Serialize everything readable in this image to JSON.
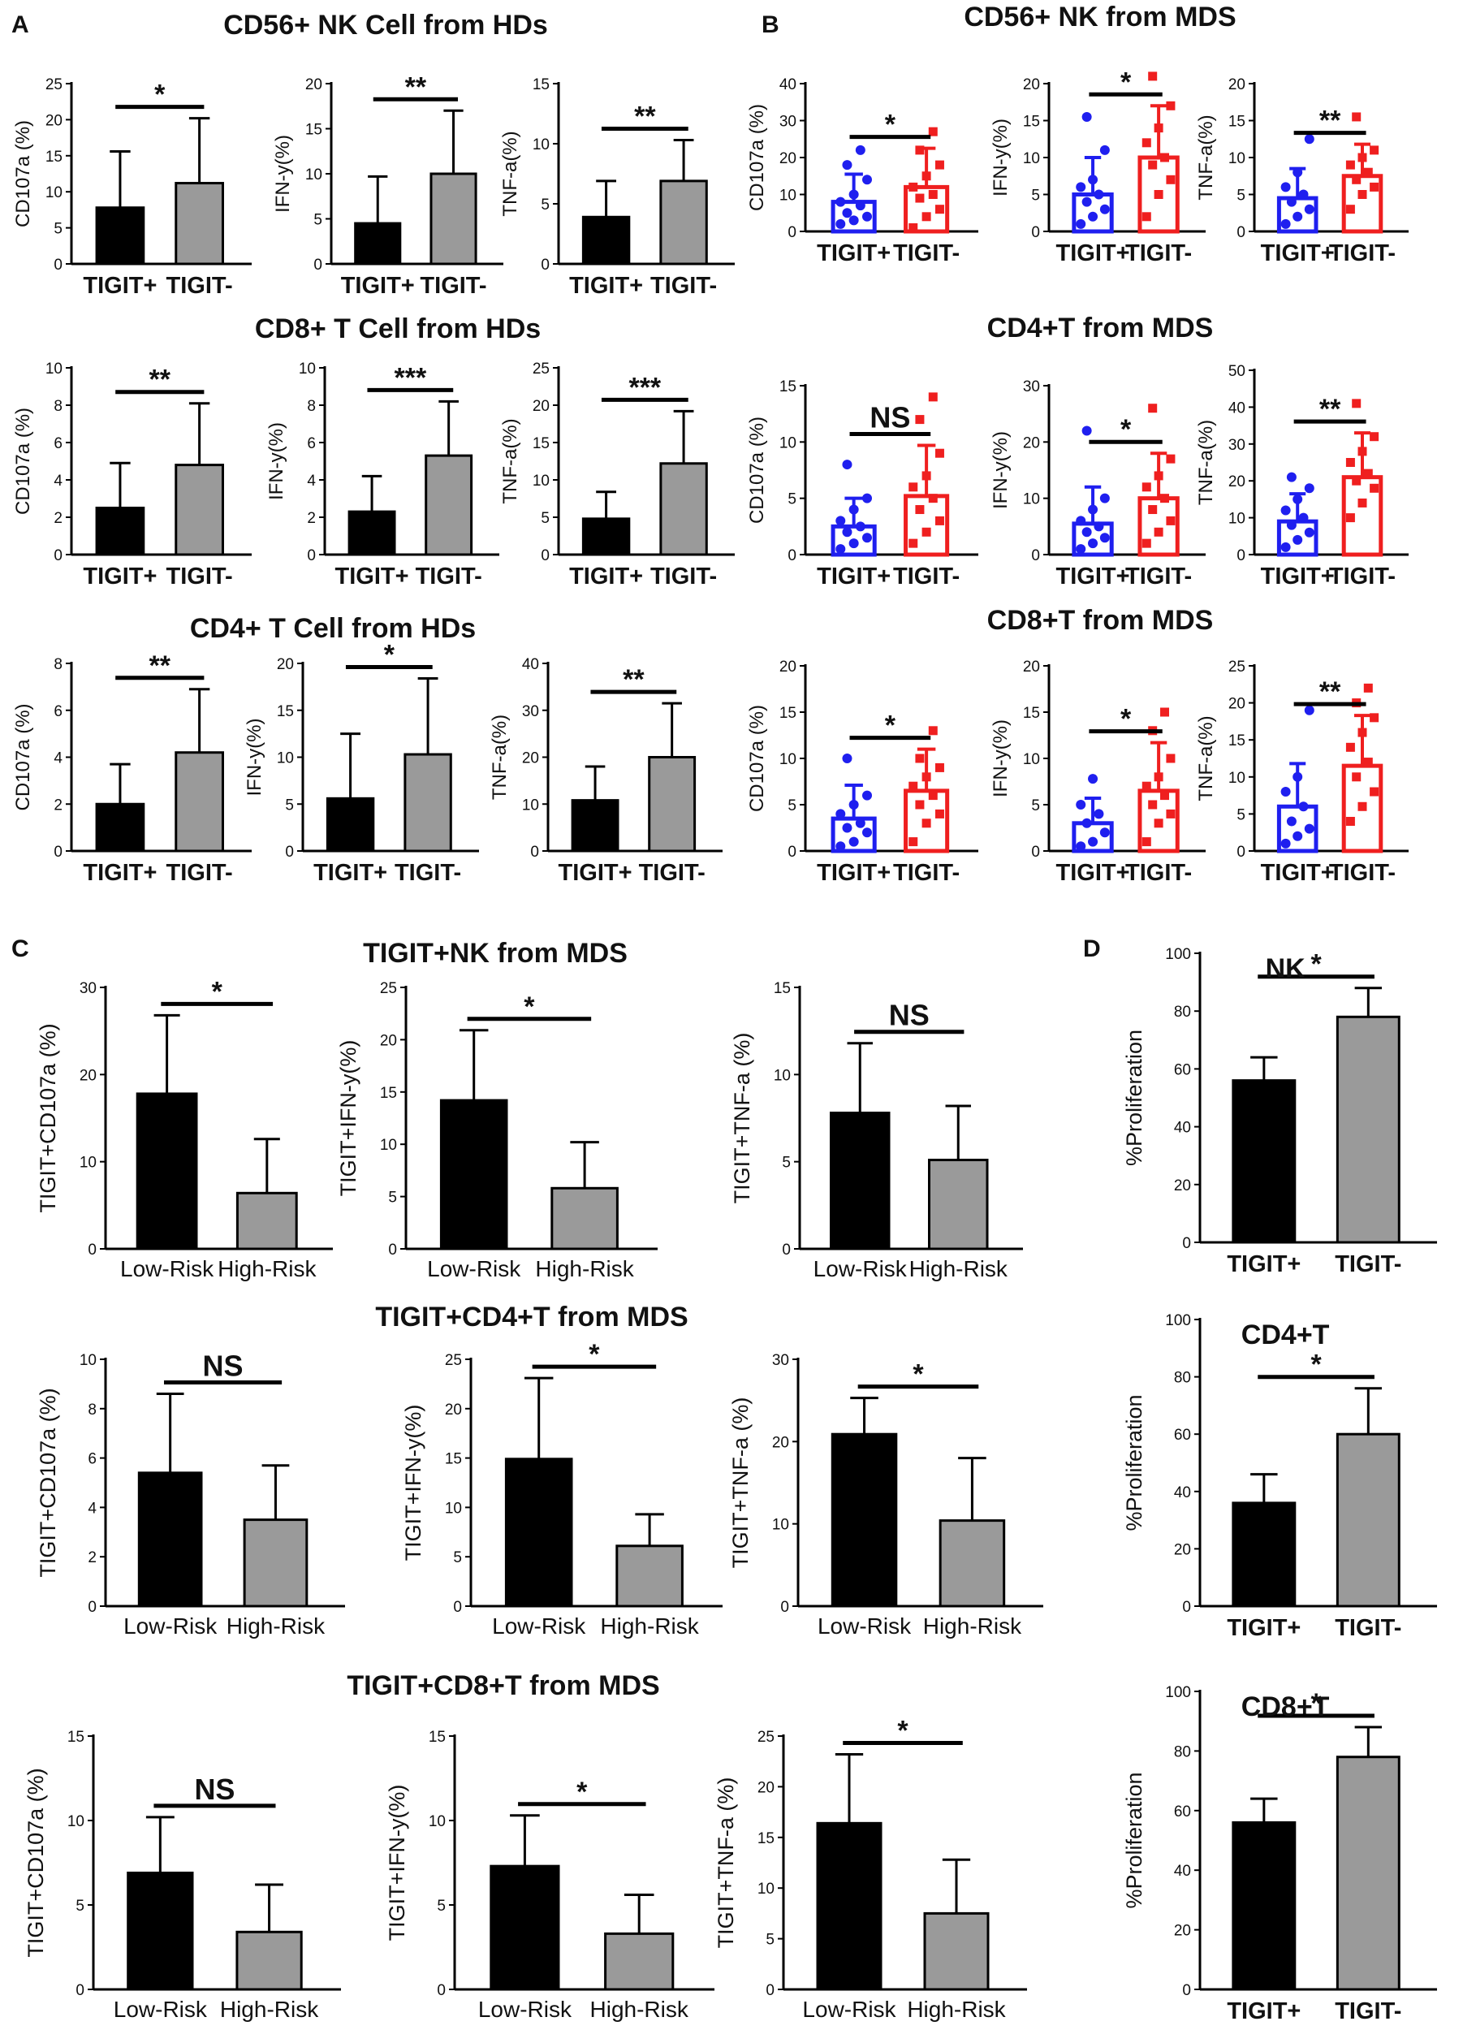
{
  "panel_labels": [
    "A",
    "B",
    "C",
    "D"
  ],
  "section_titles": {
    "a_row1": "CD56+ NK Cell from HDs",
    "a_row2": "CD8+ T Cell from HDs",
    "a_row3": "CD4+ T Cell from HDs",
    "b_row1": "CD56+ NK from MDS",
    "b_row2": "CD4+T from MDS",
    "b_row3": "CD8+T from MDS",
    "c_row1": "TIGIT+NK from MDS",
    "c_row2": "TIGIT+CD4+T from MDS",
    "c_row3": "TIGIT+CD8+T from MDS"
  },
  "colors": {
    "black_bar": "#000000",
    "gray_bar": "#9a9a9a",
    "blue": "#1f1fef",
    "red": "#ef1f1f"
  },
  "chart_data": [
    {
      "id": "A11",
      "type": "bar",
      "ylabel": "CD107a (%)",
      "ylim": [
        0,
        25
      ],
      "yticks": [
        0,
        5,
        10,
        15,
        20,
        25
      ],
      "categories": [
        "TIGIT+",
        "TIGIT-"
      ],
      "values": [
        7.8,
        11.2
      ],
      "errors": [
        7.8,
        9.0
      ],
      "significance": "*"
    },
    {
      "id": "A12",
      "type": "bar",
      "ylabel": "IFN-y(%)",
      "ylim": [
        0,
        20
      ],
      "yticks": [
        0,
        5,
        10,
        15,
        20
      ],
      "categories": [
        "TIGIT+",
        "TIGIT-"
      ],
      "values": [
        4.5,
        10.0
      ],
      "errors": [
        5.2,
        7.0
      ],
      "significance": "**"
    },
    {
      "id": "A13",
      "type": "bar",
      "ylabel": "TNF-a(%)",
      "ylim": [
        0,
        15
      ],
      "yticks": [
        0,
        5,
        10,
        15
      ],
      "categories": [
        "TIGIT+",
        "TIGIT-"
      ],
      "values": [
        3.9,
        6.9
      ],
      "errors": [
        3.0,
        3.4
      ],
      "significance": "**"
    },
    {
      "id": "A21",
      "type": "bar",
      "ylabel": "CD107a (%)",
      "ylim": [
        0,
        10
      ],
      "yticks": [
        0,
        2,
        4,
        6,
        8,
        10
      ],
      "categories": [
        "TIGIT+",
        "TIGIT-"
      ],
      "values": [
        2.5,
        4.8
      ],
      "errors": [
        2.4,
        3.3
      ],
      "significance": "**"
    },
    {
      "id": "A22",
      "type": "bar",
      "ylabel": "IFN-y(%)",
      "ylim": [
        0,
        10
      ],
      "yticks": [
        0,
        2,
        4,
        6,
        8,
        10
      ],
      "categories": [
        "TIGIT+",
        "TIGIT-"
      ],
      "values": [
        2.3,
        5.3
      ],
      "errors": [
        1.9,
        2.9
      ],
      "significance": "***"
    },
    {
      "id": "A23",
      "type": "bar",
      "ylabel": "TNF-a(%)",
      "ylim": [
        0,
        25
      ],
      "yticks": [
        0,
        5,
        10,
        15,
        20,
        25
      ],
      "categories": [
        "TIGIT+",
        "TIGIT-"
      ],
      "values": [
        4.8,
        12.2
      ],
      "errors": [
        3.6,
        7.0
      ],
      "significance": "***"
    },
    {
      "id": "A31",
      "type": "bar",
      "ylabel": "CD107a (%)",
      "ylim": [
        0,
        8
      ],
      "yticks": [
        0,
        2,
        4,
        6,
        8
      ],
      "categories": [
        "TIGIT+",
        "TIGIT-"
      ],
      "values": [
        2.0,
        4.2
      ],
      "errors": [
        1.7,
        2.7
      ],
      "significance": "**"
    },
    {
      "id": "A32",
      "type": "bar",
      "ylabel": "IFN-y(%)",
      "ylim": [
        0,
        20
      ],
      "yticks": [
        0,
        5,
        10,
        15,
        20
      ],
      "categories": [
        "TIGIT+",
        "TIGIT-"
      ],
      "values": [
        5.6,
        10.3
      ],
      "errors": [
        6.9,
        8.1
      ],
      "significance": "*"
    },
    {
      "id": "A33",
      "type": "bar",
      "ylabel": "TNF-a(%)",
      "ylim": [
        0,
        40
      ],
      "yticks": [
        0,
        10,
        20,
        30,
        40
      ],
      "categories": [
        "TIGIT+",
        "TIGIT-"
      ],
      "values": [
        10.8,
        20.0
      ],
      "errors": [
        7.2,
        11.5
      ],
      "significance": "**"
    },
    {
      "id": "B11",
      "type": "scatter",
      "ylabel": "CD107a (%)",
      "ylim": [
        0,
        40
      ],
      "yticks": [
        0,
        10,
        20,
        30,
        40
      ],
      "categories": [
        "TIGIT+",
        "TIGIT-"
      ],
      "values": [
        8,
        12
      ],
      "errors": [
        7.5,
        10.5
      ],
      "points": [
        [
          2,
          3,
          4,
          5,
          7,
          8,
          10,
          14,
          18,
          22
        ],
        [
          1,
          4,
          6,
          9,
          10,
          12,
          15,
          18,
          22,
          27
        ]
      ],
      "significance": "*"
    },
    {
      "id": "B12",
      "type": "scatter",
      "ylabel": "IFN-y(%)",
      "ylim": [
        0,
        20
      ],
      "yticks": [
        0,
        5,
        10,
        15,
        20
      ],
      "categories": [
        "TIGIT+",
        "TIGIT-"
      ],
      "values": [
        5,
        10
      ],
      "errors": [
        5,
        7
      ],
      "points": [
        [
          1,
          2,
          3,
          4,
          5,
          6,
          7,
          11,
          15.5
        ],
        [
          2,
          5,
          7,
          9,
          10,
          12,
          14,
          17,
          21
        ]
      ],
      "significance": "*"
    },
    {
      "id": "B13",
      "type": "scatter",
      "ylabel": "TNF-a(%)",
      "ylim": [
        0,
        20
      ],
      "yticks": [
        0,
        5,
        10,
        15,
        20
      ],
      "categories": [
        "TIGIT+",
        "TIGIT-"
      ],
      "values": [
        4.5,
        7.5
      ],
      "errors": [
        4,
        4.3
      ],
      "points": [
        [
          1,
          2,
          3,
          4,
          5,
          6,
          8,
          12.5
        ],
        [
          3,
          5,
          6,
          7,
          8,
          9,
          10,
          11,
          15.5
        ]
      ],
      "significance": "**"
    },
    {
      "id": "B21",
      "type": "scatter",
      "ylabel": "CD107a (%)",
      "ylim": [
        0,
        15
      ],
      "yticks": [
        0,
        5,
        10,
        15
      ],
      "categories": [
        "TIGIT+",
        "TIGIT-"
      ],
      "values": [
        2.5,
        5.2
      ],
      "errors": [
        2.5,
        4.5
      ],
      "points": [
        [
          0.5,
          1,
          1.5,
          2,
          2.5,
          3,
          4,
          5,
          8
        ],
        [
          1,
          2,
          3,
          4,
          5,
          6,
          7,
          9,
          12,
          14
        ]
      ],
      "significance": "NS"
    },
    {
      "id": "B22",
      "type": "scatter",
      "ylabel": "IFN-y(%)",
      "ylim": [
        0,
        30
      ],
      "yticks": [
        0,
        10,
        20,
        30
      ],
      "categories": [
        "TIGIT+",
        "TIGIT-"
      ],
      "values": [
        5.5,
        10
      ],
      "errors": [
        6.5,
        8
      ],
      "points": [
        [
          1,
          2,
          3,
          4,
          5,
          6,
          8,
          10,
          22
        ],
        [
          2,
          4,
          6,
          8,
          10,
          12,
          14,
          17,
          26
        ]
      ],
      "significance": "*"
    },
    {
      "id": "B23",
      "type": "scatter",
      "ylabel": "TNF-a(%)",
      "ylim": [
        0,
        50
      ],
      "yticks": [
        0,
        10,
        20,
        30,
        40,
        50
      ],
      "categories": [
        "TIGIT+",
        "TIGIT-"
      ],
      "values": [
        9,
        21
      ],
      "errors": [
        7.5,
        12
      ],
      "points": [
        [
          2,
          4,
          6,
          8,
          10,
          12,
          15,
          18,
          21
        ],
        [
          10,
          14,
          18,
          20,
          22,
          25,
          28,
          32,
          41
        ]
      ],
      "significance": "**"
    },
    {
      "id": "B31",
      "type": "scatter",
      "ylabel": "CD107a (%)",
      "ylim": [
        0,
        20
      ],
      "yticks": [
        0,
        5,
        10,
        15,
        20
      ],
      "categories": [
        "TIGIT+",
        "TIGIT-"
      ],
      "values": [
        3.5,
        6.5
      ],
      "errors": [
        3.6,
        4.5
      ],
      "points": [
        [
          0.5,
          1,
          2,
          2.5,
          3,
          4,
          5,
          6,
          10
        ],
        [
          1,
          3,
          4,
          5,
          6,
          7,
          8,
          9,
          10,
          13
        ]
      ],
      "significance": "*"
    },
    {
      "id": "B32",
      "type": "scatter",
      "ylabel": "IFN-y(%)",
      "ylim": [
        0,
        20
      ],
      "yticks": [
        0,
        5,
        10,
        15,
        20
      ],
      "categories": [
        "TIGIT+",
        "TIGIT-"
      ],
      "values": [
        3,
        6.5
      ],
      "errors": [
        2.7,
        5.2
      ],
      "points": [
        [
          0.5,
          1,
          2,
          3,
          4,
          5,
          7.8
        ],
        [
          1,
          3,
          4,
          5,
          6,
          7,
          8,
          10,
          13,
          15
        ]
      ],
      "significance": "*"
    },
    {
      "id": "B33",
      "type": "scatter",
      "ylabel": "TNF-a(%)",
      "ylim": [
        0,
        25
      ],
      "yticks": [
        0,
        5,
        10,
        15,
        20,
        25
      ],
      "categories": [
        "TIGIT+",
        "TIGIT-"
      ],
      "values": [
        6,
        11.5
      ],
      "errors": [
        5.8,
        6.8
      ],
      "points": [
        [
          1,
          2,
          3,
          4,
          6,
          8,
          10,
          19
        ],
        [
          4,
          6,
          8,
          10,
          12,
          14,
          16,
          18,
          20,
          22
        ]
      ],
      "significance": "**"
    },
    {
      "id": "C11",
      "type": "bar",
      "ylabel": "TIGIT+CD107a (%)",
      "ylim": [
        0,
        30
      ],
      "yticks": [
        0,
        10,
        20,
        30
      ],
      "categories": [
        "Low-Risk",
        "High-Risk"
      ],
      "values": [
        17.8,
        6.4
      ],
      "errors": [
        9.0,
        6.2
      ],
      "significance": "*"
    },
    {
      "id": "C12",
      "type": "bar",
      "ylabel": "TIGIT+IFN-y(%)",
      "ylim": [
        0,
        25
      ],
      "yticks": [
        0,
        5,
        10,
        15,
        20,
        25
      ],
      "categories": [
        "Low-Risk",
        "High-Risk"
      ],
      "values": [
        14.2,
        5.8
      ],
      "errors": [
        6.7,
        4.4
      ],
      "significance": "*"
    },
    {
      "id": "C13",
      "type": "bar",
      "ylabel": "TIGIT+TNF-a (%)",
      "ylim": [
        0,
        15
      ],
      "yticks": [
        0,
        5,
        10,
        15
      ],
      "categories": [
        "Low-Risk",
        "High-Risk"
      ],
      "values": [
        7.8,
        5.1
      ],
      "errors": [
        4.0,
        3.1
      ],
      "significance": "NS"
    },
    {
      "id": "C21",
      "type": "bar",
      "ylabel": "TIGIT+CD107a (%)",
      "ylim": [
        0,
        10
      ],
      "yticks": [
        0,
        2,
        4,
        6,
        8,
        10
      ],
      "categories": [
        "Low-Risk",
        "High-Risk"
      ],
      "values": [
        5.4,
        3.5
      ],
      "errors": [
        3.2,
        2.2
      ],
      "significance": "NS"
    },
    {
      "id": "C22",
      "type": "bar",
      "ylabel": "TIGIT+IFN-y(%)",
      "ylim": [
        0,
        25
      ],
      "yticks": [
        0,
        5,
        10,
        15,
        20,
        25
      ],
      "categories": [
        "Low-Risk",
        "High-Risk"
      ],
      "values": [
        14.9,
        6.1
      ],
      "errors": [
        8.2,
        3.2
      ],
      "significance": "*"
    },
    {
      "id": "C23",
      "type": "bar",
      "ylabel": "TIGIT+TNF-a (%)",
      "ylim": [
        0,
        30
      ],
      "yticks": [
        0,
        10,
        20,
        30
      ],
      "categories": [
        "Low-Risk",
        "High-Risk"
      ],
      "values": [
        20.9,
        10.4
      ],
      "errors": [
        4.4,
        7.6
      ],
      "significance": "*"
    },
    {
      "id": "C31",
      "type": "bar",
      "ylabel": "TIGIT+CD107a (%)",
      "ylim": [
        0,
        15
      ],
      "yticks": [
        0,
        5,
        10,
        15
      ],
      "categories": [
        "Low-Risk",
        "High-Risk"
      ],
      "values": [
        6.9,
        3.4
      ],
      "errors": [
        3.3,
        2.8
      ],
      "significance": "NS"
    },
    {
      "id": "C32",
      "type": "bar",
      "ylabel": "TIGIT+IFN-y(%)",
      "ylim": [
        0,
        15
      ],
      "yticks": [
        0,
        5,
        10,
        15
      ],
      "categories": [
        "Low-Risk",
        "High-Risk"
      ],
      "values": [
        7.3,
        3.3
      ],
      "errors": [
        3.0,
        2.3
      ],
      "significance": "*"
    },
    {
      "id": "C33",
      "type": "bar",
      "ylabel": "TIGIT+TNF-a (%)",
      "ylim": [
        0,
        25
      ],
      "yticks": [
        0,
        5,
        10,
        15,
        20,
        25
      ],
      "categories": [
        "Low-Risk",
        "High-Risk"
      ],
      "values": [
        16.4,
        7.5
      ],
      "errors": [
        6.8,
        5.3
      ],
      "significance": "*"
    },
    {
      "id": "D1",
      "type": "bar",
      "title": "NK",
      "ylabel": "%Proliferation",
      "ylim": [
        0,
        100
      ],
      "yticks": [
        0,
        20,
        40,
        60,
        80,
        100
      ],
      "categories": [
        "TIGIT+",
        "TIGIT-"
      ],
      "values": [
        56,
        78
      ],
      "errors": [
        8,
        10
      ],
      "significance": "*"
    },
    {
      "id": "D2",
      "type": "bar",
      "title": "CD4+T",
      "ylabel": "%Proliferation",
      "ylim": [
        0,
        100
      ],
      "yticks": [
        0,
        20,
        40,
        60,
        80,
        100
      ],
      "categories": [
        "TIGIT+",
        "TIGIT-"
      ],
      "values": [
        36,
        60
      ],
      "errors": [
        10,
        16
      ],
      "significance": "*"
    },
    {
      "id": "D3",
      "type": "bar",
      "title": "CD8+T",
      "ylabel": "%Proliferation",
      "ylim": [
        0,
        100
      ],
      "yticks": [
        0,
        20,
        40,
        60,
        80,
        100
      ],
      "categories": [
        "TIGIT+",
        "TIGIT-"
      ],
      "values": [
        56,
        78
      ],
      "errors": [
        8,
        10
      ],
      "significance": "*"
    }
  ]
}
